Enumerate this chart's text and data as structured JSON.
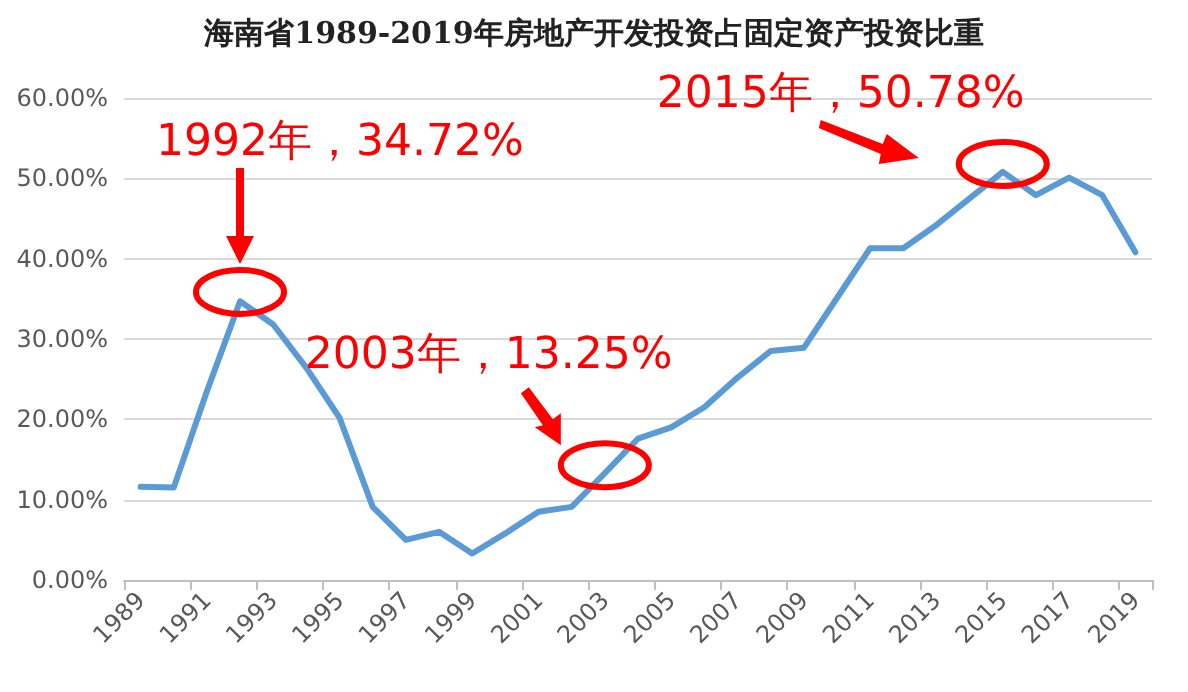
{
  "chart_data": {
    "type": "line",
    "title": "海南省1989-2019年房地产开发投资占固定资产投资比重",
    "categories": [
      "1989",
      null,
      "1991",
      null,
      "1993",
      null,
      "1995",
      null,
      "1997",
      null,
      "1999",
      null,
      "2001",
      null,
      "2003",
      null,
      "2005",
      null,
      "2007",
      null,
      "2009",
      null,
      "2011",
      null,
      "2013",
      null,
      "2015",
      null,
      "2017",
      null,
      "2019"
    ],
    "series": [
      {
        "color": "#5b9bd5",
        "values": [
          11.6,
          11.5,
          23.5,
          34.7,
          31.8,
          26.4,
          20.2,
          9.1,
          5.0,
          6.0,
          3.3,
          5.8,
          8.5,
          9.1,
          13.3,
          17.6,
          19.0,
          21.5,
          25.2,
          28.5,
          28.9,
          35.1,
          41.3,
          41.3,
          44.2,
          47.5,
          50.8,
          47.9,
          50.1,
          47.9,
          40.8
        ]
      }
    ],
    "ylim": [
      0,
      60
    ],
    "yticks": [
      {
        "value": 0,
        "label": "0.00%"
      },
      {
        "value": 10,
        "label": "10.00%"
      },
      {
        "value": 20,
        "label": "20.00%"
      },
      {
        "value": 30,
        "label": "30.00%"
      },
      {
        "value": 40,
        "label": "40.00%"
      },
      {
        "value": 50,
        "label": "50.00%"
      },
      {
        "value": 60,
        "label": "60.00%"
      }
    ],
    "grid": "y",
    "marker": "none",
    "line_style": "solid",
    "annotations": [
      "1992年，34.72%",
      {
        "text": "2003年，13.25%",
        "x": "2003",
        "y": 13.3
      },
      {
        "text": "2015年，50.78%",
        "x": "2015",
        "y": 50.8
      }
    ]
  }
}
